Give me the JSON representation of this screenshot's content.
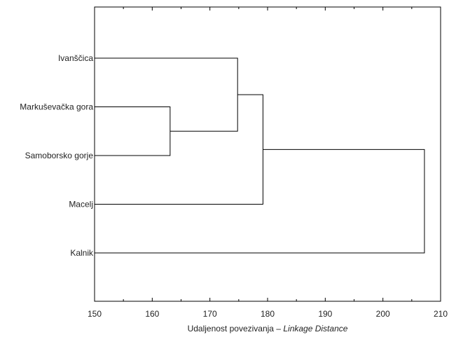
{
  "chart_data": {
    "type": "dendrogram",
    "orientation": "horizontal",
    "xlabel": "Udaljenost povezivanja",
    "xlabel_separator": "–",
    "xlabel_italic": "Linkage Distance",
    "xlim": [
      150,
      210
    ],
    "x_ticks": [
      150,
      160,
      170,
      180,
      190,
      200,
      210
    ],
    "leaves": [
      "Ivanščica",
      "Markuševačka gora",
      "Samoborsko gorje",
      "Macelj",
      "Kalnik"
    ],
    "merges": [
      {
        "a": "Markuševačka gora",
        "b": "Samoborsko gorje",
        "distance": 163.1
      },
      {
        "a": "Ivanščica",
        "b": "cluster-1",
        "distance": 174.8
      },
      {
        "a": "cluster-2",
        "b": "Macelj",
        "distance": 179.2
      },
      {
        "a": "cluster-3",
        "b": "Kalnik",
        "distance": 207.2
      }
    ],
    "grid": false,
    "colors": {
      "line": "#000000",
      "text": "#222222"
    }
  }
}
